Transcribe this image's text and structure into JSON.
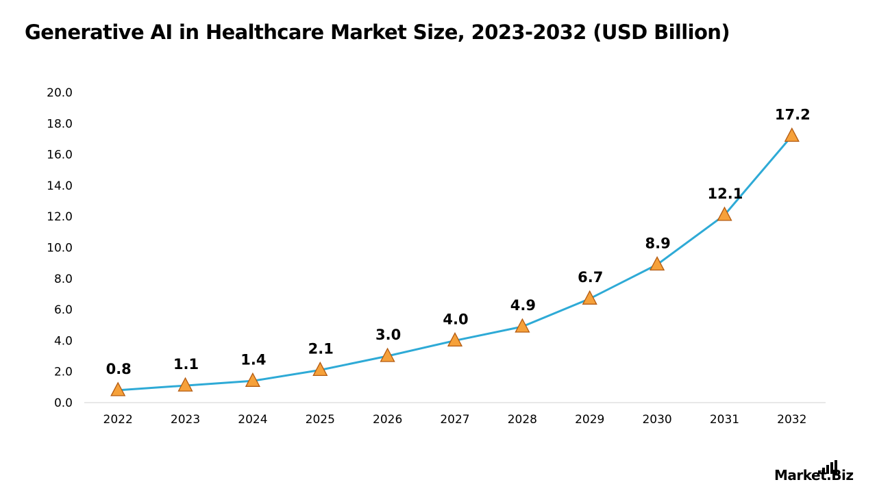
{
  "colors": {
    "line": "#2eaad6",
    "marker_fill": "#f6a13a",
    "marker_stroke": "#b35a10",
    "axis": "#d9d9d9",
    "text": "#000000"
  },
  "logo": {
    "text": "Market.Biz",
    "icon": "bar-signal-icon"
  },
  "chart_data": {
    "type": "line",
    "title": "Generative AI in Healthcare Market Size, 2023-2032 (USD Billion)",
    "xlabel": "",
    "ylabel": "",
    "categories": [
      "2022",
      "2023",
      "2024",
      "2025",
      "2026",
      "2027",
      "2028",
      "2029",
      "2030",
      "2031",
      "2032"
    ],
    "series": [
      {
        "values": [
          0.8,
          1.1,
          1.4,
          2.1,
          3.0,
          4.0,
          4.9,
          6.7,
          8.9,
          12.1,
          17.2
        ],
        "data_labels": [
          "0.8",
          "1.1",
          "1.4",
          "2.1",
          "3.0",
          "4.0",
          "4.9",
          "6.7",
          "8.9",
          "12.1",
          "17.2"
        ],
        "marker": "triangle"
      }
    ],
    "ylim": [
      0,
      20
    ],
    "y_ticks": [
      "0.0",
      "2.0",
      "4.0",
      "6.0",
      "8.0",
      "10.0",
      "12.0",
      "14.0",
      "16.0",
      "18.0",
      "20.0"
    ],
    "grid": false,
    "legend": "none"
  }
}
